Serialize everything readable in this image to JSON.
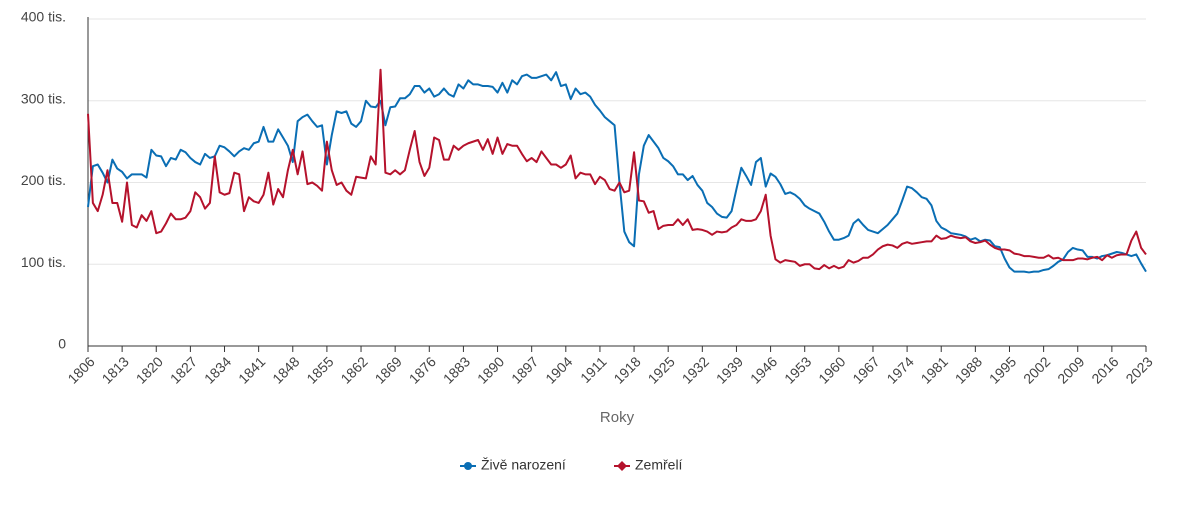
{
  "chart_data": {
    "type": "line",
    "x_label": "Roky",
    "x": [
      1806,
      1807,
      1808,
      1809,
      1810,
      1811,
      1812,
      1813,
      1814,
      1815,
      1816,
      1817,
      1818,
      1819,
      1820,
      1821,
      1822,
      1823,
      1824,
      1825,
      1826,
      1827,
      1828,
      1829,
      1830,
      1831,
      1832,
      1833,
      1834,
      1835,
      1836,
      1837,
      1838,
      1839,
      1840,
      1841,
      1842,
      1843,
      1844,
      1845,
      1846,
      1847,
      1848,
      1849,
      1850,
      1851,
      1852,
      1853,
      1854,
      1855,
      1856,
      1857,
      1858,
      1859,
      1860,
      1861,
      1862,
      1863,
      1864,
      1865,
      1866,
      1867,
      1868,
      1869,
      1870,
      1871,
      1872,
      1873,
      1874,
      1875,
      1876,
      1877,
      1878,
      1879,
      1880,
      1881,
      1882,
      1883,
      1884,
      1885,
      1886,
      1887,
      1888,
      1889,
      1890,
      1891,
      1892,
      1893,
      1894,
      1895,
      1896,
      1897,
      1898,
      1899,
      1900,
      1901,
      1902,
      1903,
      1904,
      1905,
      1906,
      1907,
      1908,
      1909,
      1910,
      1911,
      1912,
      1913,
      1914,
      1915,
      1916,
      1917,
      1918,
      1919,
      1920,
      1921,
      1922,
      1923,
      1924,
      1925,
      1926,
      1927,
      1928,
      1929,
      1930,
      1931,
      1932,
      1933,
      1934,
      1935,
      1936,
      1937,
      1938,
      1939,
      1940,
      1941,
      1942,
      1943,
      1944,
      1945,
      1946,
      1947,
      1948,
      1949,
      1950,
      1951,
      1952,
      1953,
      1954,
      1955,
      1956,
      1957,
      1958,
      1959,
      1960,
      1961,
      1962,
      1963,
      1964,
      1965,
      1966,
      1967,
      1968,
      1969,
      1970,
      1971,
      1972,
      1973,
      1974,
      1975,
      1976,
      1977,
      1978,
      1979,
      1980,
      1981,
      1982,
      1983,
      1984,
      1985,
      1986,
      1987,
      1988,
      1989,
      1990,
      1991,
      1992,
      1993,
      1994,
      1995,
      1996,
      1997,
      1998,
      1999,
      2000,
      2001,
      2002,
      2003,
      2004,
      2005,
      2006,
      2007,
      2008,
      2009,
      2010,
      2011,
      2012,
      2013,
      2014,
      2015,
      2016,
      2017,
      2018,
      2019,
      2020,
      2021,
      2022,
      2023
    ],
    "xlim": [
      1806,
      2023
    ],
    "xticks": [
      1806,
      1813,
      1820,
      1827,
      1834,
      1841,
      1848,
      1855,
      1862,
      1869,
      1876,
      1883,
      1890,
      1897,
      1904,
      1911,
      1918,
      1925,
      1932,
      1939,
      1946,
      1953,
      1960,
      1967,
      1974,
      1981,
      1988,
      1995,
      2002,
      2009,
      2016,
      2023
    ],
    "ylim": [
      0,
      400
    ],
    "yticks": [
      0,
      {
        "value": 100,
        "label": "100 tis."
      },
      {
        "value": 200,
        "label": "200 tis."
      },
      {
        "value": 300,
        "label": "300 tis."
      },
      {
        "value": 400,
        "label": "400 tis."
      }
    ],
    "grid": true,
    "series": [
      {
        "name": "Živě narození",
        "color": "#0a6eb4",
        "marker": "circle",
        "values": [
          170,
          220,
          222,
          212,
          200,
          228,
          217,
          213,
          205,
          210,
          210,
          210,
          206,
          240,
          233,
          232,
          220,
          230,
          228,
          240,
          237,
          230,
          225,
          222,
          235,
          230,
          232,
          245,
          243,
          238,
          232,
          238,
          242,
          240,
          248,
          250,
          268,
          250,
          250,
          265,
          255,
          245,
          225,
          275,
          280,
          283,
          275,
          268,
          270,
          222,
          258,
          287,
          285,
          287,
          272,
          268,
          275,
          300,
          293,
          292,
          300,
          270,
          292,
          293,
          303,
          303,
          308,
          318,
          318,
          310,
          315,
          305,
          308,
          315,
          308,
          305,
          320,
          315,
          325,
          320,
          320,
          318,
          318,
          317,
          310,
          322,
          310,
          325,
          320,
          330,
          332,
          328,
          328,
          330,
          332,
          325,
          335,
          318,
          320,
          302,
          315,
          308,
          310,
          305,
          295,
          288,
          280,
          275,
          270,
          200,
          140,
          127,
          122,
          210,
          245,
          258,
          250,
          242,
          230,
          226,
          220,
          210,
          210,
          203,
          208,
          197,
          190,
          175,
          170,
          162,
          158,
          157,
          165,
          192,
          218,
          208,
          197,
          225,
          230,
          195,
          211,
          207,
          198,
          186,
          188,
          185,
          180,
          172,
          168,
          165,
          162,
          152,
          140,
          130,
          130,
          132,
          135,
          150,
          155,
          148,
          142,
          140,
          138,
          143,
          148,
          155,
          162,
          178,
          195,
          193,
          188,
          182,
          180,
          172,
          153,
          145,
          142,
          138,
          137,
          136,
          134,
          130,
          132,
          128,
          130,
          129,
          122,
          121,
          107,
          96,
          91,
          91,
          91,
          90,
          91,
          91,
          93,
          94,
          98,
          103,
          106,
          115,
          120,
          118,
          117,
          109,
          109,
          107,
          110,
          111,
          113,
          115,
          114,
          112,
          110,
          112,
          101,
          91
        ]
      },
      {
        "name": "Zemřelí",
        "color": "#b5122c",
        "marker": "diamond",
        "values": [
          284,
          175,
          165,
          185,
          215,
          175,
          175,
          152,
          200,
          148,
          145,
          160,
          153,
          165,
          138,
          140,
          150,
          162,
          155,
          155,
          157,
          165,
          188,
          182,
          168,
          175,
          232,
          188,
          185,
          187,
          212,
          210,
          165,
          182,
          177,
          175,
          185,
          212,
          173,
          192,
          182,
          215,
          240,
          210,
          238,
          198,
          200,
          196,
          190,
          250,
          215,
          197,
          200,
          190,
          185,
          207,
          206,
          205,
          232,
          222,
          338,
          212,
          210,
          215,
          210,
          215,
          240,
          263,
          225,
          208,
          218,
          255,
          252,
          228,
          228,
          245,
          240,
          245,
          248,
          250,
          252,
          240,
          253,
          235,
          255,
          235,
          247,
          245,
          245,
          235,
          226,
          230,
          225,
          238,
          230,
          222,
          222,
          218,
          222,
          233,
          205,
          212,
          210,
          210,
          198,
          207,
          203,
          192,
          190,
          200,
          188,
          190,
          237,
          178,
          177,
          163,
          165,
          143,
          147,
          148,
          148,
          155,
          148,
          155,
          142,
          143,
          142,
          140,
          136,
          140,
          139,
          140,
          145,
          148,
          155,
          153,
          153,
          155,
          165,
          185,
          135,
          106,
          102,
          105,
          104,
          103,
          98,
          100,
          100,
          95,
          94,
          99,
          95,
          98,
          95,
          97,
          105,
          102,
          104,
          108,
          108,
          112,
          118,
          122,
          124,
          123,
          120,
          125,
          127,
          125,
          126,
          127,
          128,
          128,
          135,
          131,
          132,
          135,
          133,
          132,
          133,
          128,
          126,
          127,
          129,
          124,
          120,
          118,
          118,
          117,
          113,
          112,
          110,
          110,
          109,
          108,
          108,
          111,
          107,
          108,
          105,
          105,
          105,
          107,
          107,
          106,
          108,
          109,
          105,
          111,
          108,
          111,
          112,
          112,
          129,
          140,
          120,
          112
        ]
      }
    ]
  }
}
